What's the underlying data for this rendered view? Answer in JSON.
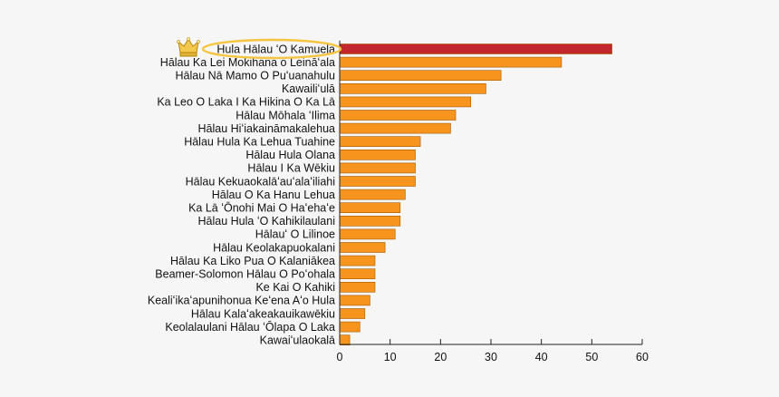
{
  "chart_data": {
    "type": "bar",
    "orientation": "horizontal",
    "title": "",
    "xlabel": "",
    "ylabel": "",
    "xlim": [
      0,
      60
    ],
    "xticks": [
      0,
      10,
      20,
      30,
      40,
      50,
      60
    ],
    "grid": false,
    "categories": [
      "Hula Hālau ʻO Kamuela",
      "Hālau Ka Lei Mokihana o Leināʻala",
      "Hālau Nā Mamo O Puʻuanahulu",
      "Kawailiʻulā",
      "Ka Leo O Laka I Ka Hikina O Ka Lā",
      "Hālau Mōhala ʻIlima",
      "Hālau Hiʻiakaināmakalehua",
      "Hālau Hula Ka Lehua Tuahine",
      "Hālau Hula Olana",
      "Hālau I Ka Wēkiu",
      "Hālau Kekuaokalāʻauʻalaʻiliahi",
      "Hālau O Ka Hanu Lehua",
      "Ka Lā ʻŌnohi Mai O Haʻehaʻe",
      "Hālau Hula ʻO Kahikilaulani",
      "Hālauʻ O Lilinoe",
      "Hālau Keolakapuokalani",
      "Hālau Ka Liko Pua O Kalaniākea",
      "Beamer-Solomon Hālau O Poʻohala",
      "Ke Kai O Kahiki",
      "Kealiʻikaʻapunihonua Keʻena Aʻo Hula",
      "Hālau Kalaʻakeakauikawēkiu",
      "Keolalaulani Hālau ʻŌlapa O Laka",
      "Kawaiʻulaokalā"
    ],
    "values": [
      54,
      44,
      32,
      29,
      26,
      23,
      22,
      16,
      15,
      15,
      15,
      13,
      12,
      12,
      11,
      9,
      7,
      7,
      7,
      6,
      5,
      4,
      2
    ],
    "highlight": {
      "index": 0,
      "color": "#c1272d",
      "marker": "crown-icon",
      "outline_color": "#f5c542"
    },
    "bar_color": "#f7941d"
  }
}
